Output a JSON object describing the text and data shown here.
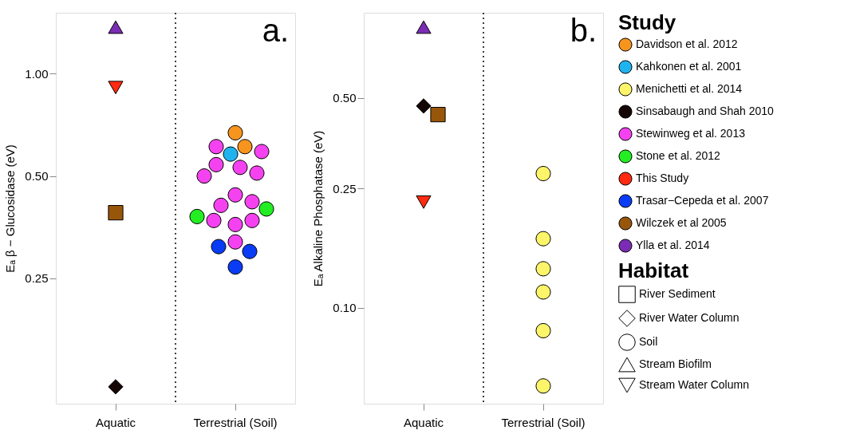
{
  "chart_data": [
    {
      "type": "scatter",
      "ylabel": "Eₐ β − Glucosidase (eV)",
      "log": "y",
      "legend": "right",
      "legend_title": "Study",
      "annotations": [
        "a."
      ],
      "categories": [
        "Aquatic",
        "Terrestrial (Soil)"
      ],
      "ylim": [
        0.107,
        1.51
      ],
      "yticks": [
        {
          "value": 0.25,
          "label": "0.25"
        },
        {
          "value": 0.5,
          "label": "0.50"
        },
        {
          "value": 1,
          "label": "1.00"
        }
      ],
      "series": [
        {
          "name": "Davidson et al. 2012",
          "color": "#f7941d",
          "marker": "circle",
          "x": [
            "Terrestrial (Soil)",
            "Terrestrial (Soil)"
          ],
          "values": [
            0.67,
            0.61
          ]
        },
        {
          "name": "Kahkonen et al. 2001",
          "color": "#1fb4f0",
          "marker": "circle",
          "x": [
            "Terrestrial (Soil)"
          ],
          "values": [
            0.58
          ]
        },
        {
          "name": "Sinsabaugh and Shah 2010",
          "color": "#140605",
          "marker": "diamond",
          "x": [
            "Aquatic"
          ],
          "values": [
            0.12
          ]
        },
        {
          "name": "Stewinweg et al. 2013",
          "color": "#f542f0",
          "marker": "circle",
          "x": [
            "Terrestrial (Soil)",
            "Terrestrial (Soil)",
            "Terrestrial (Soil)",
            "Terrestrial (Soil)",
            "Terrestrial (Soil)",
            "Terrestrial (Soil)",
            "Terrestrial (Soil)",
            "Terrestrial (Soil)",
            "Terrestrial (Soil)",
            "Terrestrial (Soil)",
            "Terrestrial (Soil)",
            "Terrestrial (Soil)",
            "Terrestrial (Soil)"
          ],
          "values": [
            0.61,
            0.59,
            0.53,
            0.54,
            0.51,
            0.5,
            0.44,
            0.42,
            0.41,
            0.36,
            0.37,
            0.32,
            0.37
          ]
        },
        {
          "name": "Stone et al. 2012",
          "color": "#22ee22",
          "marker": "circle",
          "x": [
            "Terrestrial (Soil)",
            "Terrestrial (Soil)"
          ],
          "values": [
            0.4,
            0.38
          ]
        },
        {
          "name": "This Study",
          "color": "#ff2a10",
          "marker": "triangle-down",
          "x": [
            "Aquatic"
          ],
          "values": [
            0.91
          ]
        },
        {
          "name": "Trasar−Cepeda et al. 2007",
          "color": "#0a3cf5",
          "marker": "circle",
          "x": [
            "Terrestrial (Soil)",
            "Terrestrial (Soil)",
            "Terrestrial (Soil)"
          ],
          "values": [
            0.27,
            0.3,
            0.31
          ]
        },
        {
          "name": "Wilczek et al 2005",
          "color": "#98560b",
          "marker": "square",
          "x": [
            "Aquatic"
          ],
          "values": [
            0.39
          ]
        },
        {
          "name": "Ylla et al. 2014",
          "color": "#7b2cb5",
          "marker": "triangle",
          "x": [
            "Aquatic"
          ],
          "values": [
            1.37
          ]
        }
      ]
    },
    {
      "type": "scatter",
      "ylabel": "Eₐ Alkaline Phosphatase (eV)",
      "log": "y",
      "legend": "right",
      "annotations": [
        "b."
      ],
      "categories": [
        "Aquatic",
        "Terrestrial (Soil)"
      ],
      "ylim": [
        0.048,
        0.96
      ],
      "yticks": [
        {
          "value": 0.1,
          "label": "0.10"
        },
        {
          "value": 0.25,
          "label": "0.25"
        },
        {
          "value": 0.5,
          "label": "0.50"
        }
      ],
      "series": [
        {
          "name": "Menichetti et al. 2014",
          "color": "#fdf569",
          "marker": "circle",
          "x": [
            "Terrestrial (Soil)",
            "Terrestrial (Soil)",
            "Terrestrial (Soil)",
            "Terrestrial (Soil)",
            "Terrestrial (Soil)",
            "Terrestrial (Soil)"
          ],
          "values": [
            0.28,
            0.17,
            0.135,
            0.113,
            0.084,
            0.055
          ]
        },
        {
          "name": "Sinsabaugh and Shah 2010",
          "color": "#140605",
          "marker": "diamond",
          "x": [
            "Aquatic"
          ],
          "values": [
            0.47
          ]
        },
        {
          "name": "This Study",
          "color": "#ff2a10",
          "marker": "triangle-down",
          "x": [
            "Aquatic"
          ],
          "values": [
            0.225
          ]
        },
        {
          "name": "Wilczek et al 2005",
          "color": "#98560b",
          "marker": "square",
          "x": [
            "Aquatic"
          ],
          "values": [
            0.44
          ]
        },
        {
          "name": "Ylla et al. 2014",
          "color": "#7b2cb5",
          "marker": "triangle",
          "x": [
            "Aquatic"
          ],
          "values": [
            0.86
          ]
        }
      ]
    },
    {
      "type": "other",
      "title": "Habitat",
      "series": [
        {
          "name": "River Sediment",
          "marker": "square"
        },
        {
          "name": "River Water Column",
          "marker": "diamond"
        },
        {
          "name": "Soil",
          "marker": "circle"
        },
        {
          "name": "Stream Biofilm",
          "marker": "triangle"
        },
        {
          "name": "Stream Water Column",
          "marker": "triangle-down"
        }
      ]
    }
  ]
}
